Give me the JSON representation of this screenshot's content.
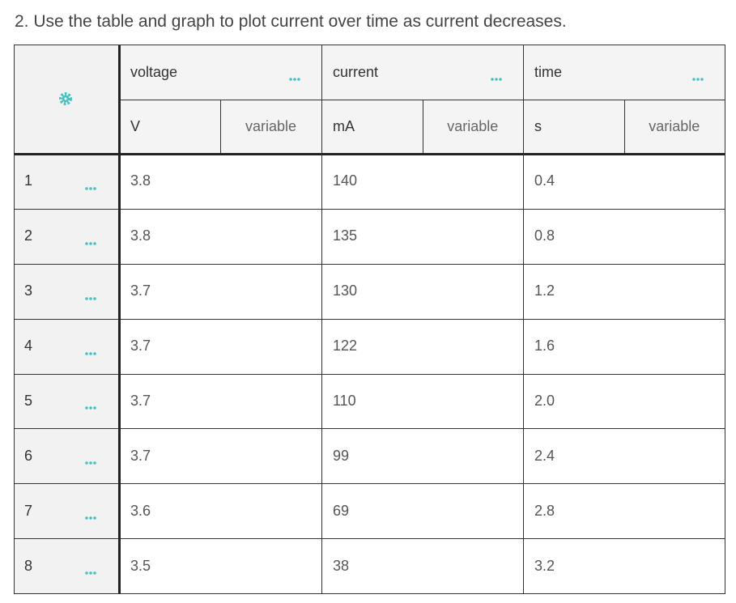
{
  "question": "2. Use the table and graph to plot current over time as current decreases.",
  "table": {
    "columns": [
      {
        "name": "voltage",
        "unit": "V",
        "kind": "variable"
      },
      {
        "name": "current",
        "unit": "mA",
        "kind": "variable"
      },
      {
        "name": "time",
        "unit": "s",
        "kind": "variable"
      }
    ],
    "rows": [
      {
        "label": "1",
        "cells": [
          "3.8",
          "140",
          "0.4"
        ]
      },
      {
        "label": "2",
        "cells": [
          "3.8",
          "135",
          "0.8"
        ]
      },
      {
        "label": "3",
        "cells": [
          "3.7",
          "130",
          "1.2"
        ]
      },
      {
        "label": "4",
        "cells": [
          "3.7",
          "122",
          "1.6"
        ]
      },
      {
        "label": "5",
        "cells": [
          "3.7",
          "110",
          "2.0"
        ]
      },
      {
        "label": "6",
        "cells": [
          "3.7",
          "99",
          "2.4"
        ]
      },
      {
        "label": "7",
        "cells": [
          "3.6",
          "69",
          "2.8"
        ]
      },
      {
        "label": "8",
        "cells": [
          "3.5",
          "38",
          "3.2"
        ]
      }
    ]
  }
}
